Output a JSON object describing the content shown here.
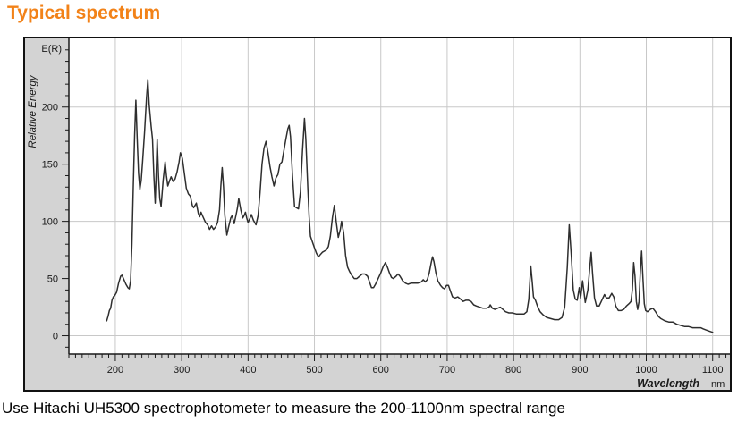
{
  "page": {
    "title": "Typical spectrum",
    "title_color": "#F28218",
    "caption": "Use Hitachi UH5300 spectrophotometer to measure the 200-1100nm spectral range"
  },
  "chart_data": {
    "type": "line",
    "corner_label": "E(R)",
    "ylabel": "Relative Energy",
    "xlabel": "Wavelength",
    "x_unit": "nm",
    "grid": true,
    "legend_position": "none",
    "x_domain": [
      130,
      1126
    ],
    "y_domain": [
      -16,
      260
    ],
    "x_major_ticks": [
      200,
      300,
      400,
      500,
      600,
      700,
      800,
      900,
      1000,
      1100
    ],
    "x_minor_step": 10,
    "y_major_ticks": [
      0,
      50,
      100,
      150,
      200
    ],
    "y_minor_step": 10,
    "x_gridlines": [
      200,
      300,
      400,
      500,
      600,
      700,
      800,
      900,
      1000,
      1100
    ],
    "y_gridlines": [
      0,
      100,
      200
    ],
    "colors": {
      "line": "#2e2e2e",
      "plot_bg": "#ffffff",
      "margin_bg": "#d3d3d3",
      "grid": "#c8c8c8",
      "axis": "#1a1a1a",
      "text": "#1a1a1a"
    },
    "points": [
      [
        187,
        13
      ],
      [
        189,
        17
      ],
      [
        191,
        22
      ],
      [
        193,
        24
      ],
      [
        195,
        31
      ],
      [
        197,
        34
      ],
      [
        199,
        35
      ],
      [
        202,
        38
      ],
      [
        205,
        46
      ],
      [
        208,
        52
      ],
      [
        210,
        53
      ],
      [
        213,
        49
      ],
      [
        216,
        45
      ],
      [
        219,
        42
      ],
      [
        221,
        41
      ],
      [
        223,
        48
      ],
      [
        225,
        80
      ],
      [
        227,
        130
      ],
      [
        229,
        175
      ],
      [
        231,
        206
      ],
      [
        233,
        172
      ],
      [
        235,
        142
      ],
      [
        237,
        128
      ],
      [
        239,
        136
      ],
      [
        241,
        152
      ],
      [
        244,
        178
      ],
      [
        247,
        208
      ],
      [
        249,
        224
      ],
      [
        251,
        202
      ],
      [
        254,
        183
      ],
      [
        256,
        172
      ],
      [
        258,
        140
      ],
      [
        260,
        116
      ],
      [
        262,
        150
      ],
      [
        263,
        172
      ],
      [
        265,
        140
      ],
      [
        267,
        120
      ],
      [
        269,
        113
      ],
      [
        272,
        136
      ],
      [
        275,
        152
      ],
      [
        277,
        140
      ],
      [
        279,
        131
      ],
      [
        282,
        136
      ],
      [
        284,
        139
      ],
      [
        287,
        135
      ],
      [
        290,
        137
      ],
      [
        293,
        143
      ],
      [
        296,
        152
      ],
      [
        298,
        160
      ],
      [
        301,
        155
      ],
      [
        304,
        142
      ],
      [
        307,
        129
      ],
      [
        310,
        124
      ],
      [
        313,
        122
      ],
      [
        316,
        114
      ],
      [
        318,
        112
      ],
      [
        320,
        114
      ],
      [
        322,
        116
      ],
      [
        325,
        107
      ],
      [
        327,
        104
      ],
      [
        329,
        108
      ],
      [
        332,
        104
      ],
      [
        336,
        99
      ],
      [
        339,
        97
      ],
      [
        342,
        93
      ],
      [
        345,
        96
      ],
      [
        348,
        93
      ],
      [
        351,
        95
      ],
      [
        354,
        99
      ],
      [
        357,
        110
      ],
      [
        359,
        131
      ],
      [
        361,
        147
      ],
      [
        363,
        130
      ],
      [
        365,
        105
      ],
      [
        368,
        88
      ],
      [
        371,
        96
      ],
      [
        374,
        103
      ],
      [
        376,
        105
      ],
      [
        379,
        98
      ],
      [
        382,
        106
      ],
      [
        384,
        112
      ],
      [
        386,
        120
      ],
      [
        389,
        110
      ],
      [
        392,
        103
      ],
      [
        394,
        105
      ],
      [
        396,
        108
      ],
      [
        398,
        103
      ],
      [
        400,
        99
      ],
      [
        403,
        103
      ],
      [
        405,
        106
      ],
      [
        408,
        101
      ],
      [
        412,
        97
      ],
      [
        415,
        105
      ],
      [
        418,
        125
      ],
      [
        421,
        150
      ],
      [
        424,
        164
      ],
      [
        427,
        170
      ],
      [
        430,
        160
      ],
      [
        433,
        148
      ],
      [
        436,
        139
      ],
      [
        439,
        131
      ],
      [
        442,
        138
      ],
      [
        445,
        141
      ],
      [
        448,
        150
      ],
      [
        451,
        152
      ],
      [
        454,
        162
      ],
      [
        457,
        172
      ],
      [
        460,
        181
      ],
      [
        462,
        184
      ],
      [
        464,
        174
      ],
      [
        467,
        140
      ],
      [
        470,
        113
      ],
      [
        473,
        112
      ],
      [
        476,
        111
      ],
      [
        479,
        126
      ],
      [
        482,
        162
      ],
      [
        485,
        190
      ],
      [
        487,
        172
      ],
      [
        490,
        130
      ],
      [
        492,
        104
      ],
      [
        494,
        87
      ],
      [
        497,
        82
      ],
      [
        500,
        77
      ],
      [
        503,
        72
      ],
      [
        506,
        69
      ],
      [
        509,
        71
      ],
      [
        512,
        73
      ],
      [
        515,
        74
      ],
      [
        518,
        75
      ],
      [
        521,
        78
      ],
      [
        524,
        87
      ],
      [
        527,
        103
      ],
      [
        530,
        114
      ],
      [
        533,
        99
      ],
      [
        536,
        86
      ],
      [
        539,
        93
      ],
      [
        541,
        100
      ],
      [
        544,
        90
      ],
      [
        547,
        70
      ],
      [
        550,
        60
      ],
      [
        553,
        56
      ],
      [
        556,
        53
      ],
      [
        560,
        50
      ],
      [
        564,
        50
      ],
      [
        568,
        52
      ],
      [
        572,
        54
      ],
      [
        576,
        54
      ],
      [
        580,
        52
      ],
      [
        583,
        47
      ],
      [
        586,
        42
      ],
      [
        589,
        42
      ],
      [
        592,
        45
      ],
      [
        596,
        50
      ],
      [
        600,
        55
      ],
      [
        604,
        61
      ],
      [
        607,
        64
      ],
      [
        610,
        60
      ],
      [
        613,
        55
      ],
      [
        616,
        51
      ],
      [
        619,
        50
      ],
      [
        623,
        52
      ],
      [
        626,
        54
      ],
      [
        629,
        52
      ],
      [
        633,
        48
      ],
      [
        637,
        46
      ],
      [
        641,
        45
      ],
      [
        646,
        46
      ],
      [
        651,
        46
      ],
      [
        656,
        46
      ],
      [
        661,
        47
      ],
      [
        664,
        49
      ],
      [
        667,
        47
      ],
      [
        670,
        49
      ],
      [
        673,
        55
      ],
      [
        676,
        64
      ],
      [
        678,
        69
      ],
      [
        680,
        65
      ],
      [
        683,
        55
      ],
      [
        686,
        48
      ],
      [
        690,
        44
      ],
      [
        693,
        42
      ],
      [
        696,
        41
      ],
      [
        699,
        44
      ],
      [
        702,
        44
      ],
      [
        705,
        39
      ],
      [
        708,
        34
      ],
      [
        712,
        33
      ],
      [
        716,
        34
      ],
      [
        720,
        32
      ],
      [
        724,
        30
      ],
      [
        728,
        31
      ],
      [
        732,
        31
      ],
      [
        736,
        30
      ],
      [
        740,
        27
      ],
      [
        744,
        26
      ],
      [
        749,
        25
      ],
      [
        754,
        24
      ],
      [
        759,
        24
      ],
      [
        763,
        25
      ],
      [
        765,
        27
      ],
      [
        768,
        24
      ],
      [
        772,
        23
      ],
      [
        776,
        24
      ],
      [
        780,
        25
      ],
      [
        784,
        23
      ],
      [
        788,
        21
      ],
      [
        793,
        20
      ],
      [
        798,
        20
      ],
      [
        804,
        19
      ],
      [
        810,
        19
      ],
      [
        816,
        19
      ],
      [
        820,
        21
      ],
      [
        823,
        32
      ],
      [
        826,
        61
      ],
      [
        828,
        48
      ],
      [
        830,
        34
      ],
      [
        833,
        31
      ],
      [
        836,
        26
      ],
      [
        840,
        21
      ],
      [
        845,
        18
      ],
      [
        850,
        16
      ],
      [
        856,
        15
      ],
      [
        862,
        14
      ],
      [
        868,
        14
      ],
      [
        873,
        16
      ],
      [
        877,
        25
      ],
      [
        881,
        60
      ],
      [
        884,
        97
      ],
      [
        887,
        70
      ],
      [
        890,
        40
      ],
      [
        893,
        32
      ],
      [
        896,
        31
      ],
      [
        899,
        42
      ],
      [
        901,
        33
      ],
      [
        904,
        48
      ],
      [
        908,
        29
      ],
      [
        912,
        40
      ],
      [
        915,
        60
      ],
      [
        917,
        73
      ],
      [
        919,
        55
      ],
      [
        922,
        33
      ],
      [
        925,
        26
      ],
      [
        929,
        26
      ],
      [
        933,
        31
      ],
      [
        937,
        36
      ],
      [
        940,
        33
      ],
      [
        944,
        33
      ],
      [
        948,
        37
      ],
      [
        951,
        34
      ],
      [
        954,
        26
      ],
      [
        958,
        22
      ],
      [
        962,
        22
      ],
      [
        966,
        23
      ],
      [
        970,
        26
      ],
      [
        974,
        28
      ],
      [
        977,
        30
      ],
      [
        979,
        40
      ],
      [
        981,
        64
      ],
      [
        983,
        52
      ],
      [
        985,
        30
      ],
      [
        987,
        23
      ],
      [
        989,
        30
      ],
      [
        991,
        55
      ],
      [
        993,
        74
      ],
      [
        995,
        50
      ],
      [
        997,
        28
      ],
      [
        999,
        22
      ],
      [
        1002,
        21
      ],
      [
        1006,
        23
      ],
      [
        1010,
        24
      ],
      [
        1014,
        21
      ],
      [
        1018,
        17
      ],
      [
        1022,
        15
      ],
      [
        1028,
        13
      ],
      [
        1034,
        12
      ],
      [
        1040,
        12
      ],
      [
        1046,
        10
      ],
      [
        1052,
        9
      ],
      [
        1058,
        8
      ],
      [
        1064,
        8
      ],
      [
        1070,
        7
      ],
      [
        1076,
        7
      ],
      [
        1082,
        7
      ],
      [
        1086,
        6
      ],
      [
        1090,
        5
      ],
      [
        1095,
        4
      ],
      [
        1100,
        3
      ]
    ]
  }
}
